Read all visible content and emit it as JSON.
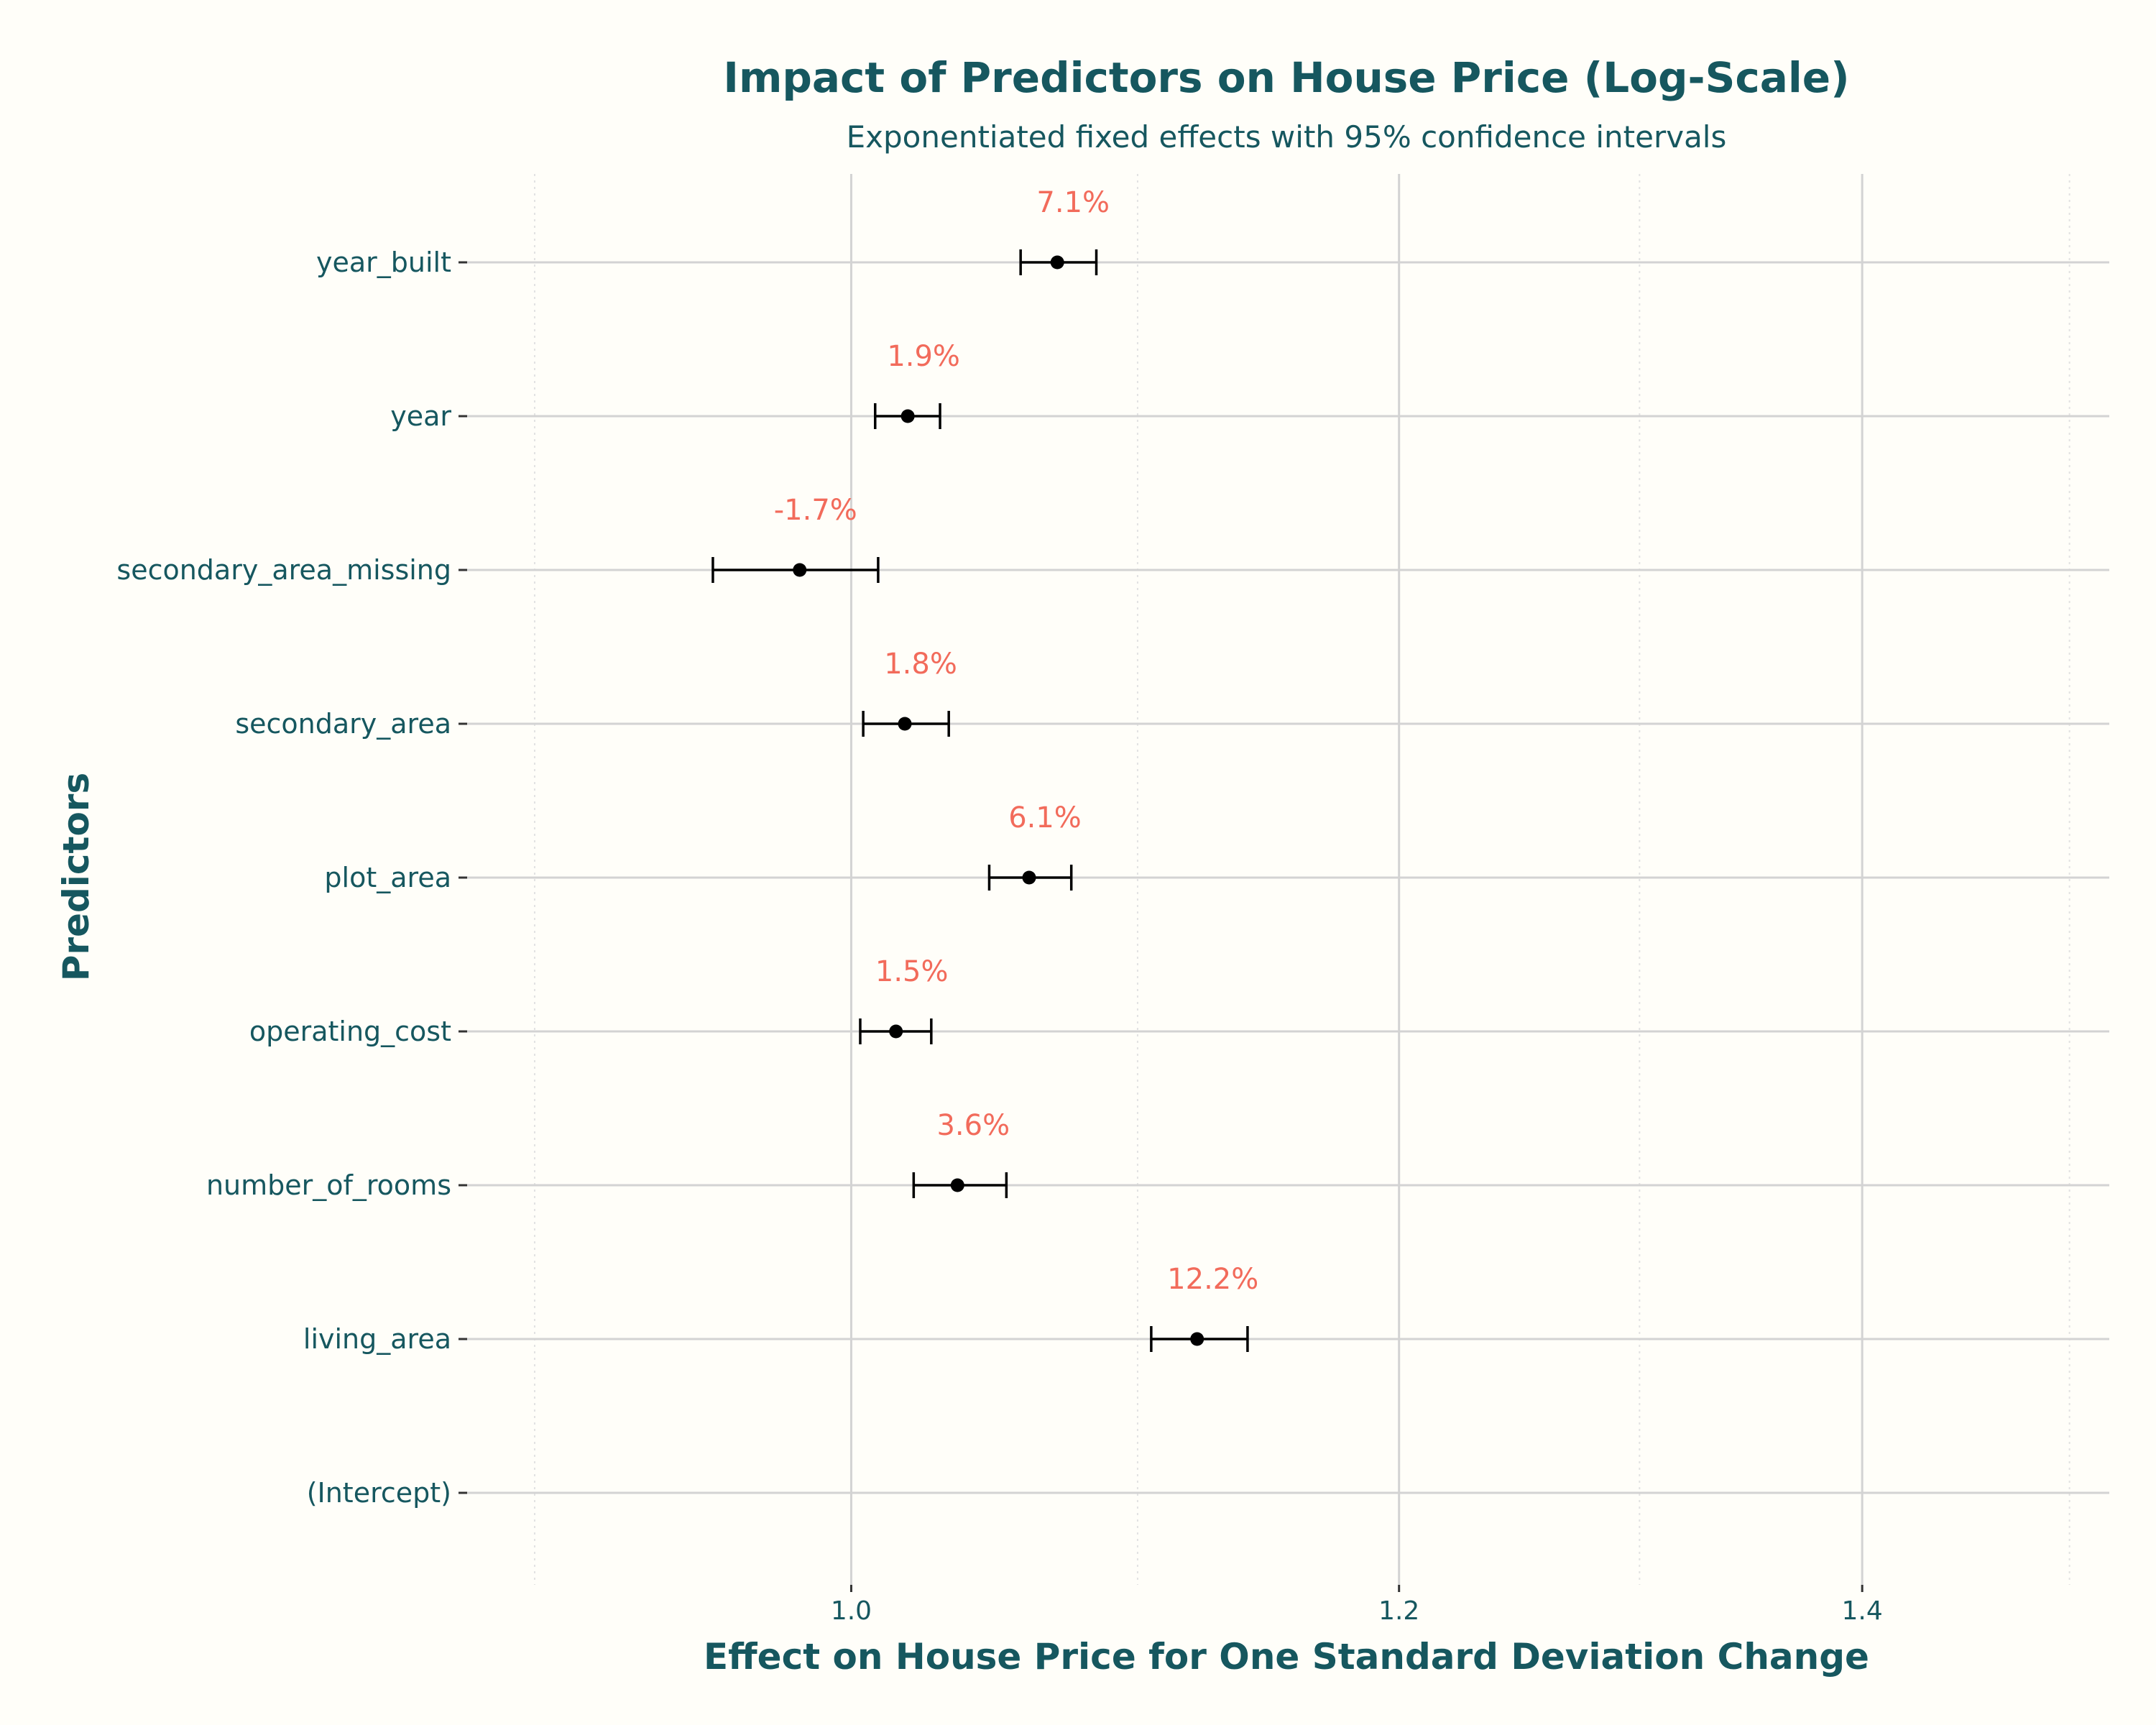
{
  "chart_data": {
    "type": "scatter",
    "title": "Impact of Predictors on House Price (Log-Scale)",
    "subtitle": "Exponentiated fixed effects with 95% confidence intervals",
    "xlabel": "Effect on House Price for One Standard Deviation Change",
    "ylabel": "Predictors",
    "x_log_scale": true,
    "xlim": [
      0.88,
      1.52
    ],
    "x_ticks": [
      1.0,
      1.2,
      1.4
    ],
    "x_tick_labels": [
      "1.0",
      "1.2",
      "1.4"
    ],
    "x_minor_gridlines": [
      0.9,
      1.1,
      1.3,
      1.5
    ],
    "grid": true,
    "categories": [
      "(Intercept)",
      "living_area",
      "number_of_rooms",
      "operating_cost",
      "plot_area",
      "secondary_area",
      "secondary_area_missing",
      "year",
      "year_built"
    ],
    "points": [
      {
        "predictor": "(Intercept)",
        "estimate": null,
        "lower": null,
        "upper": null,
        "label": ""
      },
      {
        "predictor": "living_area",
        "estimate": 1.122,
        "lower": 1.105,
        "upper": 1.141,
        "label": "12.2%"
      },
      {
        "predictor": "number_of_rooms",
        "estimate": 1.036,
        "lower": 1.021,
        "upper": 1.053,
        "label": "3.6%"
      },
      {
        "predictor": "operating_cost",
        "estimate": 1.015,
        "lower": 1.003,
        "upper": 1.027,
        "label": "1.5%"
      },
      {
        "predictor": "plot_area",
        "estimate": 1.061,
        "lower": 1.047,
        "upper": 1.076,
        "label": "6.1%"
      },
      {
        "predictor": "secondary_area",
        "estimate": 1.018,
        "lower": 1.004,
        "upper": 1.033,
        "label": "1.8%"
      },
      {
        "predictor": "secondary_area_missing",
        "estimate": 0.983,
        "lower": 0.955,
        "upper": 1.009,
        "label": "-1.7%"
      },
      {
        "predictor": "year",
        "estimate": 1.019,
        "lower": 1.008,
        "upper": 1.03,
        "label": "1.9%"
      },
      {
        "predictor": "year_built",
        "estimate": 1.071,
        "lower": 1.058,
        "upper": 1.085,
        "label": "7.1%"
      }
    ],
    "colors": {
      "background": "#FFFEF9",
      "text": "#16575F",
      "label": "#F26B5B",
      "point": "#000000",
      "grid_major": "#D3D3D3",
      "grid_minor": "#E2E2E2"
    }
  }
}
